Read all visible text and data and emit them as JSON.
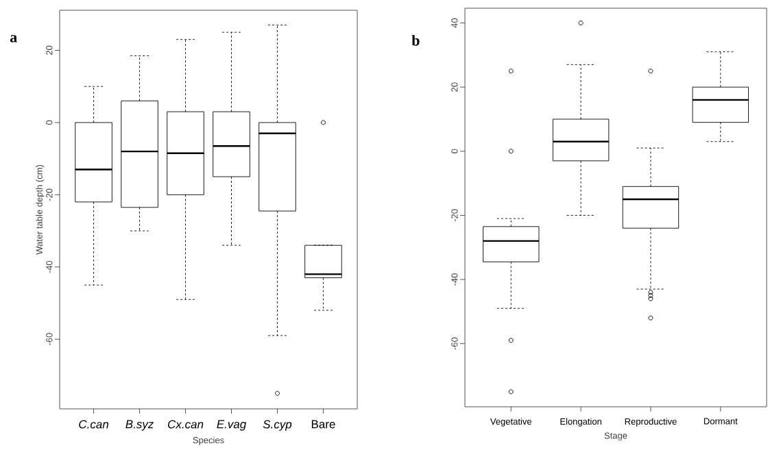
{
  "chart_data": [
    {
      "type": "box",
      "categories": [
        "*C.can*",
        "*B.syz*",
        "*Cx.can*",
        "*E.vag*",
        "*S.cyp*",
        "Bare"
      ],
      "xlabel": "Species",
      "ylabel": "Water table depth (cm)",
      "ylim": [
        -79.3,
        31.1
      ],
      "yticks": [
        -60,
        -40,
        -20,
        0,
        20
      ],
      "annotations": [
        "a"
      ],
      "boxes": [
        {
          "low": -45,
          "q1": -22,
          "median": -13,
          "q3": 0,
          "high": 10
        },
        {
          "low": -30,
          "q1": -23.5,
          "median": -8,
          "q3": 6,
          "high": 18.5
        },
        {
          "low": -49,
          "q1": -20,
          "median": -8.5,
          "q3": 3,
          "high": 23
        },
        {
          "low": -34,
          "q1": -15,
          "median": -6.5,
          "q3": 3,
          "high": 25
        },
        {
          "low": -59,
          "q1": -24.5,
          "median": -3,
          "q3": 0,
          "high": 27,
          "outliers": [
            -75
          ]
        },
        {
          "low": -52,
          "q1": -43,
          "median": -42,
          "q3": -34,
          "high": -34,
          "outliers": [
            0
          ]
        }
      ]
    },
    {
      "type": "box",
      "categories": [
        "Vegetative",
        "Elongation",
        "Reproductive",
        "Dormant"
      ],
      "xlabel": "Stage",
      "ylim": [
        -79.7,
        44.6
      ],
      "yticks": [
        -60,
        -40,
        -20,
        0,
        20,
        40
      ],
      "annotations": [
        "b"
      ],
      "boxes": [
        {
          "low": -49,
          "q1": -34.5,
          "median": -28,
          "q3": -23.5,
          "high": -21,
          "outliers": [
            25,
            0,
            -59,
            -75
          ]
        },
        {
          "low": -20,
          "q1": -3,
          "median": 3,
          "q3": 10,
          "high": 27,
          "outliers": [
            40
          ]
        },
        {
          "low": -43,
          "q1": -24,
          "median": -15,
          "q3": -11,
          "high": 1,
          "outliers": [
            25,
            -44,
            -45,
            -46,
            -52
          ]
        },
        {
          "low": 3,
          "q1": 9,
          "median": 16,
          "q3": 20,
          "high": 31
        }
      ]
    }
  ]
}
